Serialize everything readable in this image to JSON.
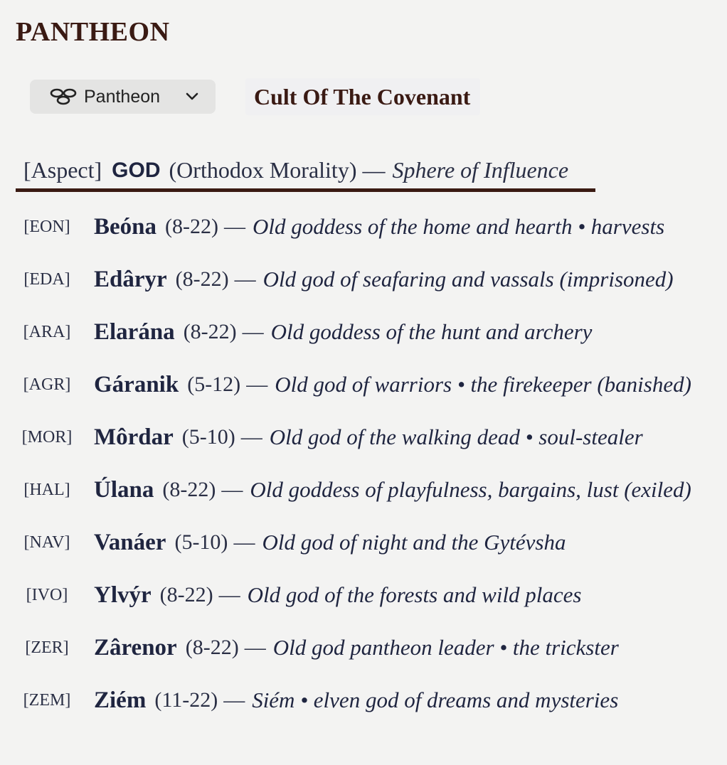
{
  "page": {
    "title": "PANTHEON"
  },
  "toolbar": {
    "select_label": "Pantheon",
    "select_icon": "stacked-discs-icon",
    "chevron_icon": "chevron-down-icon",
    "cult_name": "Cult Of The Covenant"
  },
  "legend": {
    "aspect": "[Aspect]",
    "god": "GOD",
    "morality": "(Orthodox Morality)",
    "dash": "—",
    "sphere": "Sphere of Influence"
  },
  "gods": [
    {
      "abbr": "[EON]",
      "name": "Beóna",
      "range": "(8-22)",
      "dash": "—",
      "desc": "Old goddess of the home and hearth • harvests"
    },
    {
      "abbr": "[EDA]",
      "name": "Edâryr",
      "range": "(8-22)",
      "dash": "—",
      "desc": "Old god of seafaring and vassals (imprisoned)"
    },
    {
      "abbr": "[ARA]",
      "name": "Elarána",
      "range": "(8-22)",
      "dash": "—",
      "desc": "Old goddess of the hunt and archery"
    },
    {
      "abbr": "[AGR]",
      "name": "Gáranik",
      "range": "(5-12)",
      "dash": "—",
      "desc": "Old god of warriors • the firekeeper (banished)"
    },
    {
      "abbr": "[MOR]",
      "name": "Môrdar",
      "range": "(5-10)",
      "dash": "—",
      "desc": "Old god of the walking dead • soul-stealer"
    },
    {
      "abbr": "[HAL]",
      "name": "Úlana",
      "range": "(8-22)",
      "dash": "—",
      "desc": "Old goddess of playfulness, bargains, lust (exiled)"
    },
    {
      "abbr": "[NAV]",
      "name": "Vanáer",
      "range": "(5-10)",
      "dash": "—",
      "desc": "Old god of night and the Gytévsha"
    },
    {
      "abbr": "[IVO]",
      "name": "Ylvýr",
      "range": "(8-22)",
      "dash": "—",
      "desc": "Old god of the forests and wild places"
    },
    {
      "abbr": "[ZER]",
      "name": "Zârenor",
      "range": "(8-22)",
      "dash": "—",
      "desc": "Old god pantheon leader • the trickster"
    },
    {
      "abbr": "[ZEM]",
      "name": "Ziém",
      "range": "(11-22)",
      "dash": "—",
      "desc": "Siém • elven god of dreams and mysteries"
    }
  ]
}
